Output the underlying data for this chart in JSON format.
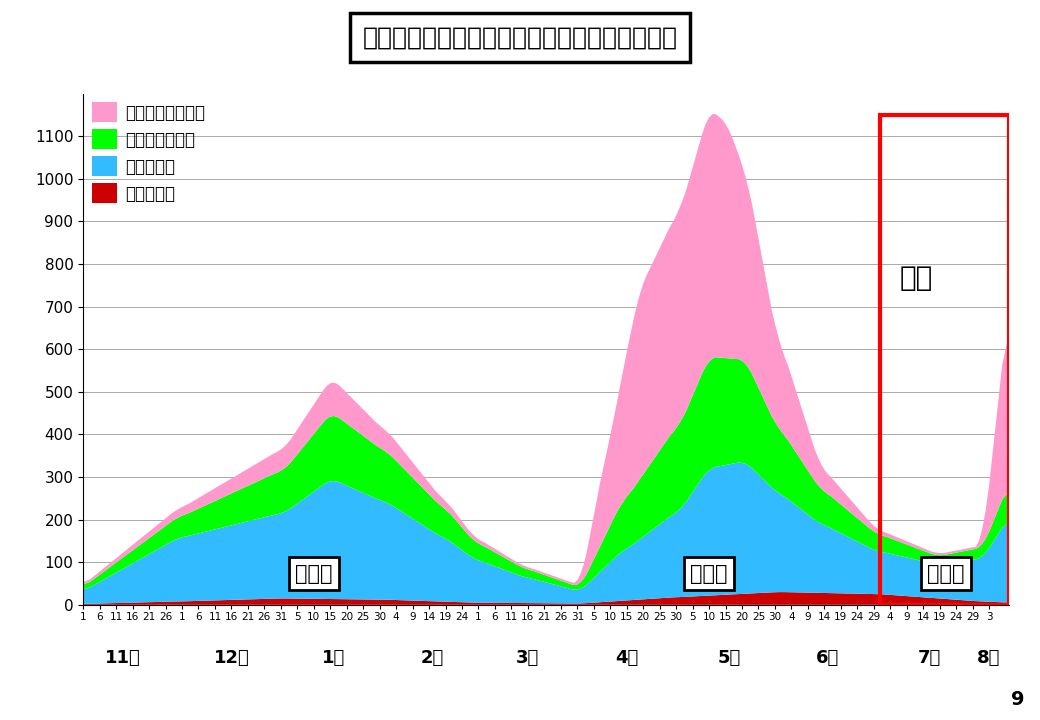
{
  "title": "奈良県内における療養者数、入院者数等の推移",
  "colors": {
    "waiting": "#FF99CC",
    "hotel": "#00FF00",
    "hospital": "#33BBFF",
    "severe": "#CC0000",
    "background": "#FFFFFF"
  },
  "legend_labels": [
    "：入院待機者等数",
    "：宿泊療養者数",
    "：入院者数",
    "：重症者数"
  ],
  "month_labels": [
    "11月",
    "12月",
    "1月",
    "2月",
    "3月",
    "4月",
    "5月",
    "6月",
    "7月",
    "8月"
  ],
  "wave_labels": [
    "第３波",
    "第４波",
    "第５波"
  ],
  "ylim": [
    0,
    1200
  ],
  "yticks": [
    0,
    100,
    200,
    300,
    400,
    500,
    600,
    700,
    800,
    900,
    1000,
    1100
  ],
  "page_number": "9",
  "next_page_text": "次頁"
}
